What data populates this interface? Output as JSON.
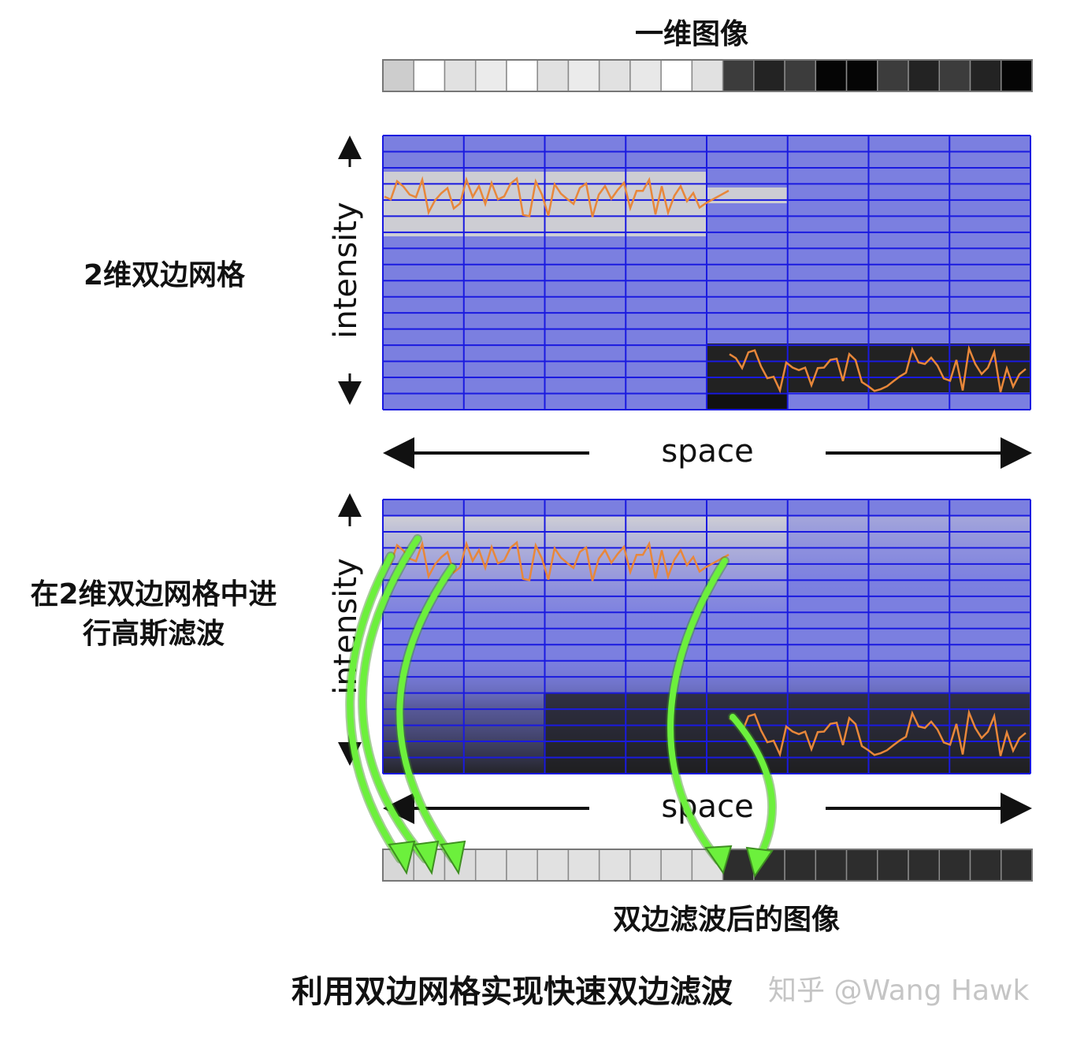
{
  "labels": {
    "top_title": "一维图像",
    "grid_label": "2维双边网格",
    "blur_label_line1": "在2维双边网格中进",
    "blur_label_line2": "行高斯滤波",
    "result_label": "双边滤波后的图像",
    "caption": "利用双边网格实现快速双边滤波",
    "watermark": "知乎 @Wang Hawk"
  },
  "axes": {
    "intensity": "intensity",
    "space": "space"
  },
  "colors": {
    "grid_blue": "#7b7fe0",
    "grid_line": "#1a1ae0",
    "signal": "#e8873a",
    "arrow_green": "#6cf03c"
  },
  "strip_top_gray": [
    205,
    255,
    225,
    235,
    255,
    225,
    235,
    225,
    232,
    255,
    225,
    60,
    35,
    60,
    5,
    5,
    60,
    35,
    60,
    35,
    5
  ],
  "strip_bottom_gray": [
    215,
    220,
    220,
    225,
    225,
    225,
    225,
    225,
    225,
    225,
    225,
    45,
    45,
    45,
    45,
    45,
    45,
    45,
    45,
    45,
    45
  ]
}
